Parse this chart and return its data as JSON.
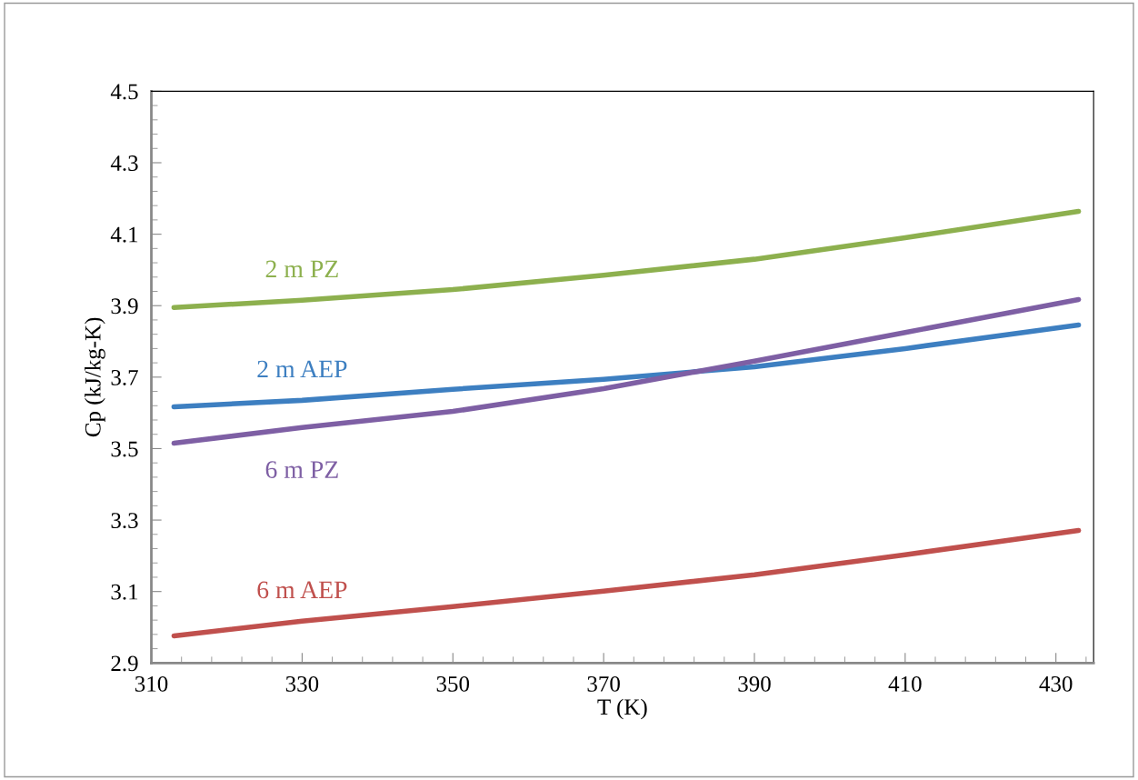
{
  "chart_data": {
    "type": "line",
    "xlabel": "T (K)",
    "ylabel": "Cp (kJ/kg-K)",
    "xlim": [
      310,
      435
    ],
    "xticks": [
      310,
      330,
      350,
      370,
      390,
      410,
      430
    ],
    "ylim": [
      2.9,
      4.5
    ],
    "yticks": [
      2.9,
      3.1,
      3.3,
      3.5,
      3.7,
      3.9,
      4.1,
      4.3,
      4.5
    ],
    "grid": false,
    "legend": false,
    "marker": "none",
    "line_style": "solid",
    "x": [
      313,
      330,
      350,
      370,
      390,
      410,
      433
    ],
    "series": [
      {
        "name": "2 m PZ",
        "color": "#8db04e",
        "values": [
          3.895,
          3.915,
          3.945,
          3.985,
          4.03,
          4.09,
          4.164
        ]
      },
      {
        "name": "2 m AEP",
        "color": "#3d7fc1",
        "values": [
          3.617,
          3.635,
          3.666,
          3.694,
          3.729,
          3.78,
          3.846
        ]
      },
      {
        "name": "6 m PZ",
        "color": "#7e5fa4",
        "values": [
          3.515,
          3.559,
          3.604,
          3.668,
          3.745,
          3.825,
          3.917
        ]
      },
      {
        "name": "6 m AEP",
        "color": "#c0504d",
        "values": [
          2.976,
          3.017,
          3.058,
          3.101,
          3.147,
          3.203,
          3.271
        ]
      }
    ]
  }
}
